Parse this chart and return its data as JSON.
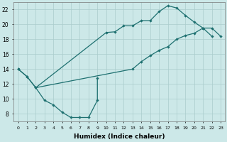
{
  "xlabel": "Humidex (Indice chaleur)",
  "xlim": [
    -0.5,
    23.5
  ],
  "ylim": [
    7.0,
    23.0
  ],
  "xticks": [
    0,
    1,
    2,
    3,
    4,
    5,
    6,
    7,
    8,
    9,
    10,
    11,
    12,
    13,
    14,
    15,
    16,
    17,
    18,
    19,
    20,
    21,
    22,
    23
  ],
  "yticks": [
    8,
    10,
    12,
    14,
    16,
    18,
    20,
    22
  ],
  "background_color": "#cce8e8",
  "grid_color": "#aacccc",
  "line_color": "#1e7070",
  "line1_x": [
    0,
    1,
    2,
    3,
    4,
    5,
    6,
    7,
    8,
    9,
    9
  ],
  "line1_y": [
    14.0,
    13.0,
    11.5,
    9.8,
    9.2,
    8.2,
    7.5,
    7.5,
    7.5,
    9.8,
    12.8
  ],
  "marker_x2": [
    0,
    1,
    2,
    10,
    11,
    12,
    13,
    14,
    15,
    16,
    17,
    18,
    19,
    20,
    21,
    22
  ],
  "marker_y2": [
    14.0,
    13.0,
    11.5,
    18.9,
    19.0,
    19.8,
    19.8,
    20.5,
    20.5,
    21.7,
    22.5,
    22.2,
    21.2,
    20.3,
    19.5,
    18.4
  ],
  "marker_x3": [
    13,
    14,
    15,
    16,
    17,
    18,
    19,
    20,
    21,
    22,
    23
  ],
  "marker_y3": [
    14.0,
    15.0,
    15.8,
    16.5,
    17.0,
    18.0,
    18.5,
    18.8,
    19.5,
    19.5,
    18.4
  ]
}
